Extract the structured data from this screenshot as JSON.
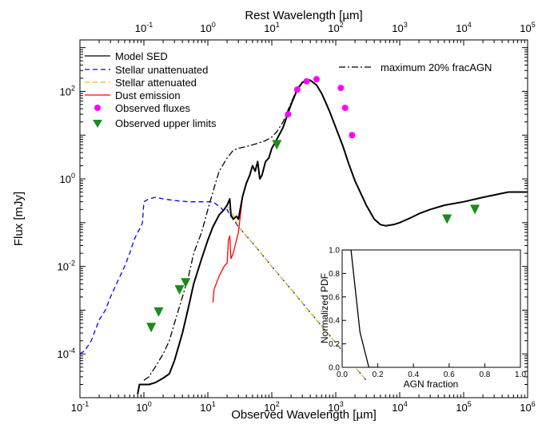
{
  "chart_data": [
    {
      "type": "line",
      "xlabel": "Observed Wavelength [µm]",
      "x2label": "Rest Wavelength [µm]",
      "ylabel": "Flux [mJy]",
      "xscale": "log",
      "yscale": "log",
      "xlim": [
        0.1,
        1000000
      ],
      "x2lim": [
        0.01,
        100000
      ],
      "ylim": [
        1e-05,
        1500
      ],
      "x_ticks": [
        {
          "base": "10",
          "exp": "-1",
          "value": 0.1
        },
        {
          "base": "10",
          "exp": "0",
          "value": 1
        },
        {
          "base": "10",
          "exp": "1",
          "value": 10
        },
        {
          "base": "10",
          "exp": "2",
          "value": 100
        },
        {
          "base": "10",
          "exp": "3",
          "value": 1000
        },
        {
          "base": "10",
          "exp": "4",
          "value": 10000
        },
        {
          "base": "10",
          "exp": "5",
          "value": 100000
        },
        {
          "base": "10",
          "exp": "6",
          "value": 1000000
        }
      ],
      "x2_ticks": [
        {
          "base": "10",
          "exp": "-1",
          "value": 0.1
        },
        {
          "base": "10",
          "exp": "0",
          "value": 1
        },
        {
          "base": "10",
          "exp": "1",
          "value": 10
        },
        {
          "base": "10",
          "exp": "2",
          "value": 100
        },
        {
          "base": "10",
          "exp": "3",
          "value": 1000
        },
        {
          "base": "10",
          "exp": "4",
          "value": 10000
        },
        {
          "base": "10",
          "exp": "5",
          "value": 100000
        }
      ],
      "y_ticks": [
        {
          "base": "10",
          "exp": "-4",
          "value": 0.0001
        },
        {
          "base": "10",
          "exp": "-2",
          "value": 0.01
        },
        {
          "base": "10",
          "exp": "0",
          "value": 1
        },
        {
          "base": "10",
          "exp": "2",
          "value": 100
        }
      ],
      "legend_location": "top-left",
      "annotation": "maximum 20% fracAGN",
      "series": [
        {
          "name": "Model SED",
          "color": "#000000",
          "style": "solid",
          "x": [
            0.8,
            0.85,
            1.0,
            1.2,
            1.5,
            2.0,
            2.5,
            3.0,
            4.0,
            5.0,
            6.0,
            8.0,
            10.0,
            12.0,
            15.0,
            18.0,
            20.0,
            22.0,
            23.0,
            25.0,
            28.0,
            30.0,
            35.0,
            40.0,
            45.0,
            50.0,
            55.0,
            60.0,
            65.0,
            70.0,
            80.0,
            90.0,
            100.0,
            120.0,
            150.0,
            200.0,
            250.0,
            300.0,
            400.0,
            500.0,
            600.0,
            700.0,
            800.0,
            1000.0,
            1300.0,
            1600.0,
            2000.0,
            3000.0,
            4000.0,
            5000.0,
            6000.0,
            8000.0,
            10000.0,
            15000.0,
            20000.0,
            30000.0,
            50000.0,
            100000.0,
            200000.0,
            500000.0,
            1000000.0
          ],
          "y": [
            1.2e-05,
            2e-05,
            2e-05,
            2e-05,
            2.2e-05,
            2.8e-05,
            3.5e-05,
            7e-05,
            0.0003,
            0.0012,
            0.004,
            0.015,
            0.04,
            0.08,
            0.15,
            0.2,
            0.25,
            0.35,
            0.15,
            0.12,
            0.14,
            0.12,
            0.4,
            0.8,
            1.2,
            2.0,
            1.5,
            2.5,
            1.0,
            1.2,
            2.5,
            3.0,
            5.0,
            8.0,
            15.0,
            50.0,
            110.0,
            160.0,
            180.0,
            140.0,
            90.0,
            55.0,
            35.0,
            15.0,
            5.5,
            2.2,
            0.9,
            0.25,
            0.12,
            0.09,
            0.085,
            0.09,
            0.1,
            0.13,
            0.16,
            0.2,
            0.25,
            0.3,
            0.38,
            0.5,
            0.5
          ]
        },
        {
          "name": "Stellar unattenuated",
          "color": "#0000ff",
          "style": "dashed",
          "x": [
            0.1,
            0.12,
            0.15,
            0.18,
            0.2,
            0.25,
            0.3,
            0.4,
            0.5,
            0.6,
            0.7,
            0.8,
            0.9,
            0.95,
            1.0,
            1.2,
            1.5,
            2.0,
            3.0,
            5.0,
            8.0,
            12.0,
            16.0,
            18.0,
            20.0,
            22.0,
            25.0,
            30.0,
            40.0,
            60.0,
            100.0,
            200.0,
            500.0,
            1000.0,
            2000.0,
            3000.0
          ],
          "y": [
            0.0001,
            0.00012,
            0.0002,
            0.0004,
            0.0006,
            0.001,
            0.002,
            0.005,
            0.01,
            0.02,
            0.04,
            0.06,
            0.08,
            0.1,
            0.3,
            0.35,
            0.38,
            0.35,
            0.32,
            0.3,
            0.3,
            0.3,
            0.22,
            0.18,
            0.2,
            0.15,
            0.12,
            0.08,
            0.05,
            0.025,
            0.01,
            0.003,
            0.0006,
            0.00018,
            5e-05,
            2.5e-05
          ]
        },
        {
          "name": "Stellar attenuated",
          "color": "#e6c200",
          "style": "dashed",
          "x": [
            0.8,
            0.85,
            1.0,
            1.2,
            1.5,
            2.0,
            2.5,
            3.0,
            4.0,
            5.0,
            6.0,
            8.0,
            10.0,
            12.0,
            15.0,
            18.0,
            20.0,
            22.0,
            25.0,
            30.0,
            40.0,
            60.0,
            100.0,
            200.0,
            500.0,
            1000.0,
            2000.0,
            3000.0
          ],
          "y": [
            1.2e-05,
            2e-05,
            2e-05,
            2e-05,
            2.2e-05,
            2.8e-05,
            3.5e-05,
            7e-05,
            0.0003,
            0.0012,
            0.004,
            0.015,
            0.04,
            0.08,
            0.15,
            0.2,
            0.25,
            0.2,
            0.15,
            0.08,
            0.05,
            0.025,
            0.01,
            0.003,
            0.0006,
            0.00018,
            5e-05,
            2.5e-05
          ]
        },
        {
          "name": "Dust emission",
          "color": "#ff0000",
          "style": "solid",
          "x": [
            12.0,
            12.5,
            15.0,
            18.0,
            20.0,
            21.0,
            22.0,
            23.0,
            25.0,
            28.0,
            30.0,
            35.0,
            40.0,
            45.0,
            50.0,
            55.0,
            60.0,
            65.0,
            70.0,
            80.0,
            90.0,
            100.0,
            120.0,
            150.0,
            200.0,
            250.0,
            300.0,
            400.0,
            500.0,
            600.0,
            700.0,
            800.0,
            1000.0,
            1300.0,
            1600.0,
            2000.0,
            3000.0,
            4000.0,
            5000.0,
            6000.0,
            8000.0,
            10000.0,
            15000.0,
            20000.0,
            30000.0,
            50000.0,
            100000.0,
            200000.0,
            500000.0,
            1000000.0
          ],
          "y": [
            0.0015,
            0.003,
            0.006,
            0.01,
            0.012,
            0.04,
            0.05,
            0.015,
            0.02,
            0.04,
            0.06,
            0.4,
            0.8,
            1.2,
            2.0,
            1.5,
            2.5,
            1.0,
            1.2,
            2.5,
            3.0,
            5.0,
            8.0,
            15.0,
            50.0,
            110.0,
            160.0,
            180.0,
            140.0,
            90.0,
            55.0,
            35.0,
            15.0,
            5.5,
            2.2,
            0.9,
            0.25,
            0.12,
            0.09,
            0.085,
            0.09,
            0.1,
            0.13,
            0.16,
            0.2,
            0.25,
            0.3,
            0.38,
            0.5,
            0.5
          ]
        },
        {
          "name": "maximum 20% fracAGN",
          "color": "#000000",
          "style": "dashdot",
          "x": [
            1.0,
            1.2,
            1.5,
            2.0,
            2.5,
            3.0,
            4.0,
            5.0,
            6.0,
            8.0,
            10.0,
            12.0,
            15.0,
            20.0,
            25.0,
            30.0,
            40.0,
            50.0,
            60.0,
            80.0,
            100.0,
            120.0,
            150.0,
            200.0,
            250.0,
            300.0,
            400.0
          ],
          "y": [
            2.5e-05,
            3e-05,
            5e-05,
            0.0001,
            0.0002,
            0.0005,
            0.002,
            0.006,
            0.02,
            0.06,
            0.2,
            0.5,
            1.5,
            3.0,
            4.5,
            5.0,
            5.5,
            6.0,
            6.5,
            7.5,
            9.0,
            12.0,
            20.0,
            55.0,
            115.0,
            165.0,
            185.0
          ]
        },
        {
          "name": "Observed fluxes",
          "color": "#ff00ff",
          "marker": "circle",
          "x": [
            180.0,
            250.0,
            350.0,
            500.0,
            1200.0,
            1400.0,
            1800.0
          ],
          "y": [
            30.0,
            110.0,
            170.0,
            190.0,
            120.0,
            42.0,
            10.0
          ]
        },
        {
          "name": "Observed upper limits",
          "color": "#1a8c1a",
          "marker": "triangle-down",
          "x": [
            1.3,
            1.7,
            3.6,
            4.5,
            120.0,
            55000.0,
            150000.0
          ],
          "y": [
            0.0004,
            0.0009,
            0.0029,
            0.0042,
            6.0,
            0.12,
            0.2
          ]
        }
      ]
    },
    {
      "type": "line",
      "xlabel": "AGN fraction",
      "ylabel": "Normalized PDF",
      "xlim": [
        0.0,
        1.0
      ],
      "ylim": [
        0.0,
        1.0
      ],
      "x_ticks": [
        "0.0",
        "0.2",
        "0.4",
        "0.6",
        "0.8",
        "1.0"
      ],
      "x_tick_values": [
        0.0,
        0.2,
        0.4,
        0.6,
        0.8,
        1.0
      ],
      "y_ticks": [
        "0.0",
        "0.2",
        "0.4",
        "0.6",
        "0.8",
        "1.0"
      ],
      "y_tick_values": [
        0.0,
        0.2,
        0.4,
        0.6,
        0.8,
        1.0
      ],
      "series": [
        {
          "color": "#000000",
          "x": [
            0.0,
            0.05,
            0.1,
            0.15,
            0.2
          ],
          "y": [
            1.0,
            1.0,
            0.3,
            0.0,
            0.0
          ]
        }
      ]
    }
  ]
}
